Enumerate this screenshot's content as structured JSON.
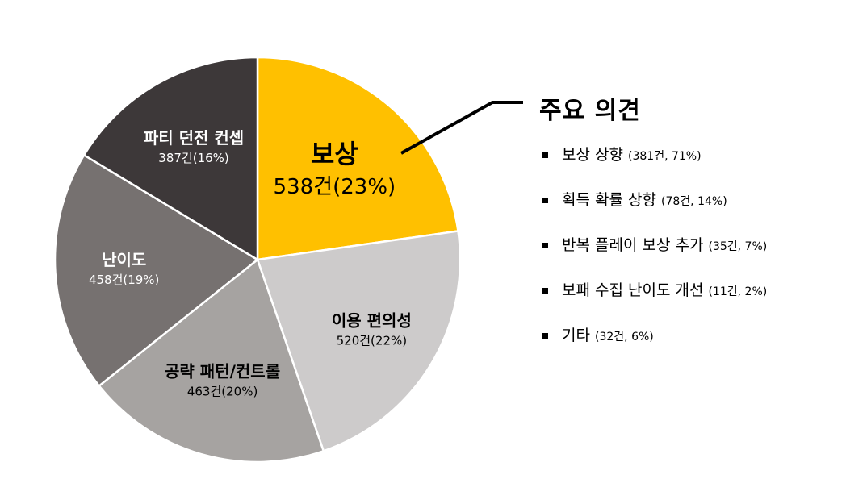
{
  "chart_data": {
    "type": "pie",
    "slices": [
      {
        "name": "보상",
        "count_label": "538건(23%)",
        "value": 538,
        "percent": 23,
        "color": "#FFC000"
      },
      {
        "name": "이용 편의성",
        "count_label": "520건(22%)",
        "value": 520,
        "percent": 22,
        "color": "#CDCBCB"
      },
      {
        "name": "공략 패턴/컨트롤",
        "count_label": "463건(20%)",
        "value": 463,
        "percent": 20,
        "color": "#A6A3A1"
      },
      {
        "name": "난이도",
        "count_label": "458건(19%)",
        "value": 458,
        "percent": 19,
        "color": "#767170"
      },
      {
        "name": "파티 던전 컨셉",
        "count_label": "387건(16%)",
        "value": 387,
        "percent": 16,
        "color": "#3D3839"
      }
    ],
    "highlight": "보상"
  },
  "panel": {
    "title": "주요 의견",
    "items": [
      {
        "label": "보상 상향",
        "detail": "(381건, 71%)"
      },
      {
        "label": "획득 확률 상향",
        "detail": "(78건, 14%)"
      },
      {
        "label": "반복 플레이 보상 추가",
        "detail": "(35건, 7%)"
      },
      {
        "label": "보패 수집 난이도 개선",
        "detail": "(11건, 2%)"
      },
      {
        "label": "기타",
        "detail": "(32건, 6%)"
      }
    ]
  }
}
